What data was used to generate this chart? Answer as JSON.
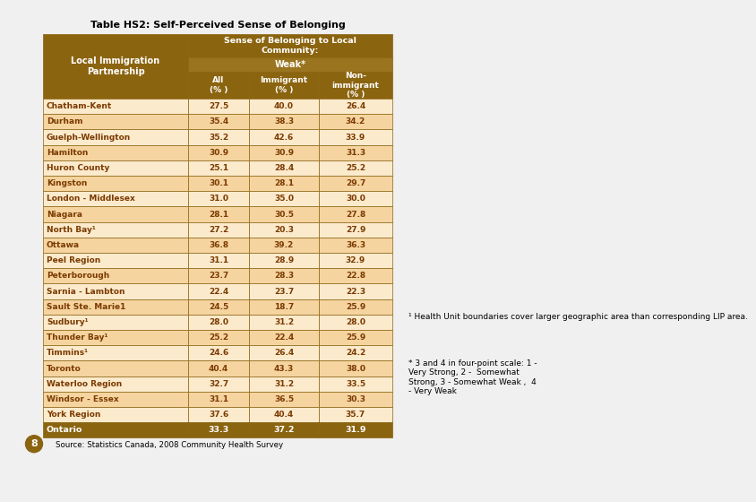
{
  "title": "Table HS2: Self-Perceived Sense of Belonging",
  "rows": [
    [
      "Chatham-Kent",
      "27.5",
      "40.0",
      "26.4"
    ],
    [
      "Durham",
      "35.4",
      "38.3",
      "34.2"
    ],
    [
      "Guelph-Wellington",
      "35.2",
      "42.6",
      "33.9"
    ],
    [
      "Hamilton",
      "30.9",
      "30.9",
      "31.3"
    ],
    [
      "Huron County",
      "25.1",
      "28.4",
      "25.2"
    ],
    [
      "Kingston",
      "30.1",
      "28.1",
      "29.7"
    ],
    [
      "London - Middlesex",
      "31.0",
      "35.0",
      "30.0"
    ],
    [
      "Niagara",
      "28.1",
      "30.5",
      "27.8"
    ],
    [
      "North Bay¹",
      "27.2",
      "20.3",
      "27.9"
    ],
    [
      "Ottawa",
      "36.8",
      "39.2",
      "36.3"
    ],
    [
      "Peel Region",
      "31.1",
      "28.9",
      "32.9"
    ],
    [
      "Peterborough",
      "23.7",
      "28.3",
      "22.8"
    ],
    [
      "Sarnia - Lambton",
      "22.4",
      "23.7",
      "22.3"
    ],
    [
      "Sault Ste. Marie1",
      "24.5",
      "18.7",
      "25.9"
    ],
    [
      "Sudbury¹",
      "28.0",
      "31.2",
      "28.0"
    ],
    [
      "Thunder Bay¹",
      "25.2",
      "22.4",
      "25.9"
    ],
    [
      "Timmins¹",
      "24.6",
      "26.4",
      "24.2"
    ],
    [
      "Toronto",
      "40.4",
      "43.3",
      "38.0"
    ],
    [
      "Waterloo Region",
      "32.7",
      "31.2",
      "33.5"
    ],
    [
      "Windsor - Essex",
      "31.1",
      "36.5",
      "30.3"
    ],
    [
      "York Region",
      "37.6",
      "40.4",
      "35.7"
    ]
  ],
  "last_row": [
    "Ontario",
    "33.3",
    "37.2",
    "31.9"
  ],
  "footnote1": "¹ Health Unit boundaries cover larger geographic area than corresponding LIP area.",
  "footnote2": "* 3 and 4 in four-point scale: 1 -\nVery Strong, 2 -  Somewhat\nStrong, 3 - Somewhat Weak ,  4\n- Very Weak",
  "source": "Source: Statistics Canada, 2008 Community Health Survey",
  "page_num": "8",
  "header_bg": "#8B6410",
  "header_alt_bg": "#9B7420",
  "row_odd_bg": "#FBEACC",
  "row_even_bg": "#F5D4A0",
  "last_row_bg": "#8B6410",
  "header_text": "#FFFFFF",
  "body_text": "#7B3A00",
  "last_row_text": "#FFFFFF",
  "outer_bg": "#F0F0F0",
  "border_color": "#8B6410",
  "title_color": "#000000"
}
